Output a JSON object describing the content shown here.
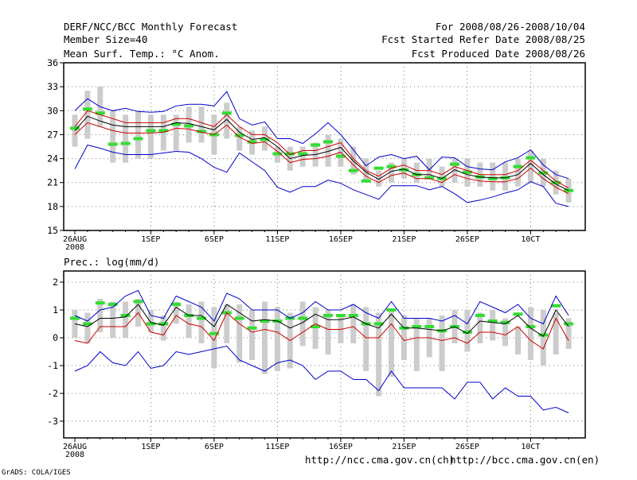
{
  "header": {
    "title_left": "DERF/NCC/BCC Monthly Forecast",
    "member_size": "Member Size=40",
    "variable": "Mean Surf. Temp.: °C Anom.",
    "period": "For 2008/08/26-2008/10/04",
    "fcst_started": "Fcst Started Refer Date 2008/08/25",
    "fcst_produced": "Fcst Produced Date 2008/08/26"
  },
  "footer": {
    "credit": "GrADS: COLA/IGES",
    "url_ncc": "http://ncc.cma.gov.cn(ch)",
    "url_bcc": "http://bcc.cma.gov.cn(en)"
  },
  "colors": {
    "mean": "#000000",
    "envelope": "#0000cc",
    "spread": "#cc0000",
    "box": "#cccccc",
    "median": "#33dd33",
    "grid": "#777777"
  },
  "chart_data": [
    {
      "type": "line",
      "title": "Mean Surf. Temp.: °C Anom.",
      "xlabel": "",
      "ylabel": "",
      "ylim": [
        15,
        36
      ],
      "yticks": [
        15,
        18,
        21,
        24,
        27,
        30,
        33,
        36
      ],
      "grid": true,
      "xtick_labels": [
        {
          "day": 1,
          "label": "26AUG",
          "sublabel": "2008"
        },
        {
          "day": 7,
          "label": "1SEP"
        },
        {
          "day": 12,
          "label": "6SEP"
        },
        {
          "day": 17,
          "label": "11SEP"
        },
        {
          "day": 22,
          "label": "16SEP"
        },
        {
          "day": 27,
          "label": "21SEP"
        },
        {
          "day": 32,
          "label": "26SEP"
        },
        {
          "day": 37,
          "label": "1OCT",
          "display": "10CT"
        }
      ],
      "days": [
        1,
        2,
        3,
        4,
        5,
        6,
        7,
        8,
        9,
        10,
        11,
        12,
        13,
        14,
        15,
        16,
        17,
        18,
        19,
        20,
        21,
        22,
        23,
        24,
        25,
        26,
        27,
        28,
        29,
        30,
        31,
        32,
        33,
        34,
        35,
        36,
        37,
        38,
        39,
        40
      ],
      "boxes": {
        "low": [
          25.5,
          26.5,
          28,
          23.5,
          23.5,
          24,
          24,
          25,
          25,
          26,
          26,
          24.5,
          26.5,
          25,
          24.5,
          25,
          23.5,
          22.5,
          23,
          23,
          23,
          23,
          22,
          21,
          20.5,
          21,
          21.5,
          21,
          21.5,
          20.5,
          21,
          20.5,
          20.5,
          20,
          20,
          20.5,
          21,
          20.5,
          19.5,
          18.5
        ],
        "high": [
          29.5,
          32.5,
          33,
          30,
          29.5,
          30,
          29.5,
          29.5,
          29.5,
          30.5,
          30.5,
          29.5,
          31,
          28,
          27.5,
          28,
          25.5,
          25.5,
          25.5,
          26,
          27,
          26.5,
          25.5,
          24,
          22.5,
          23.5,
          24,
          23.5,
          24,
          23,
          24,
          24,
          23.5,
          23.5,
          23.5,
          24,
          25,
          24,
          22.5,
          21.5
        ],
        "median": [
          27.8,
          30.2,
          29.7,
          25.8,
          25.9,
          26.5,
          27.5,
          27.5,
          28.3,
          28.1,
          27.4,
          27.0,
          29.7,
          26.9,
          26.1,
          26.4,
          24.6,
          24.6,
          24.6,
          25.7,
          26.1,
          24.3,
          22.5,
          21.2,
          22.8,
          23.0,
          22.6,
          22.0,
          21.6,
          21.5,
          23.3,
          22.3,
          21.7,
          21.5,
          21.6,
          23.0,
          24.1,
          22.2,
          21.0,
          20.0
        ]
      },
      "series": [
        {
          "name": "ensemble mean",
          "color": "#000000",
          "values": [
            27.5,
            29.3,
            28.7,
            28.2,
            28.0,
            28.0,
            28.0,
            28.0,
            28.5,
            28.4,
            28.0,
            27.6,
            28.9,
            27.3,
            26.4,
            26.6,
            25.5,
            24.0,
            24.4,
            24.5,
            24.9,
            25.4,
            23.7,
            22.3,
            21.4,
            22.4,
            22.7,
            22.0,
            22.0,
            21.5,
            22.6,
            22.0,
            21.7,
            21.6,
            21.6,
            22.0,
            23.4,
            22.0,
            20.8,
            20.0
          ]
        },
        {
          "name": "mean + spread",
          "color": "#cc0000",
          "values": [
            28.0,
            30.0,
            29.5,
            29.0,
            28.5,
            28.5,
            28.5,
            28.5,
            29.0,
            29.0,
            28.5,
            28.0,
            29.5,
            28.0,
            27.0,
            27.0,
            26.0,
            24.5,
            25.0,
            25.0,
            25.5,
            26.0,
            24.0,
            22.5,
            21.8,
            22.8,
            23.2,
            22.5,
            22.5,
            22.0,
            23.0,
            22.5,
            22.0,
            22.0,
            22.0,
            22.5,
            23.8,
            22.5,
            21.2,
            20.3
          ]
        },
        {
          "name": "mean - spread",
          "color": "#cc0000",
          "values": [
            27.0,
            28.5,
            28.0,
            27.5,
            27.2,
            27.2,
            27.2,
            27.3,
            27.8,
            27.7,
            27.3,
            27.0,
            28.2,
            26.7,
            25.9,
            26.1,
            24.9,
            23.5,
            23.9,
            24.0,
            24.3,
            24.8,
            23.2,
            21.8,
            21.0,
            21.9,
            22.2,
            21.5,
            21.5,
            21.0,
            22.0,
            21.5,
            21.2,
            21.1,
            21.1,
            21.5,
            22.8,
            21.5,
            20.4,
            19.6
          ]
        },
        {
          "name": "ensemble max",
          "color": "#0000cc",
          "values": [
            30.0,
            31.5,
            30.5,
            30.0,
            30.3,
            29.9,
            29.8,
            29.9,
            30.6,
            30.8,
            30.8,
            30.6,
            32.4,
            29.0,
            28.2,
            28.6,
            26.5,
            26.5,
            25.9,
            27.1,
            28.5,
            27.0,
            25.1,
            23.1,
            24.2,
            24.5,
            24.0,
            24.3,
            22.6,
            24.2,
            24.1,
            23.0,
            22.7,
            22.6,
            23.6,
            24.1,
            25.1,
            23.2,
            22.0,
            21.5
          ]
        },
        {
          "name": "ensemble min",
          "color": "#0000cc",
          "values": [
            22.7,
            25.7,
            25.3,
            24.8,
            24.5,
            24.5,
            24.5,
            24.7,
            24.9,
            24.8,
            24.0,
            22.9,
            22.3,
            24.7,
            23.6,
            22.5,
            20.4,
            19.8,
            20.5,
            20.5,
            21.3,
            20.9,
            20.1,
            19.5,
            18.9,
            20.6,
            20.6,
            20.6,
            20.1,
            20.5,
            19.6,
            18.5,
            18.8,
            19.2,
            19.7,
            20.1,
            21.1,
            20.5,
            18.4,
            18.0
          ]
        }
      ]
    },
    {
      "type": "line",
      "title": "Prec.: log(mm/d)",
      "xlabel": "",
      "ylabel": "",
      "ylim": [
        -3.6,
        2.4
      ],
      "yticks": [
        -3,
        -2,
        -1,
        0,
        1,
        2
      ],
      "grid": true,
      "xtick_labels": [
        {
          "day": 1,
          "label": "26AUG",
          "sublabel": "2008"
        },
        {
          "day": 7,
          "label": "1SEP"
        },
        {
          "day": 12,
          "label": "6SEP"
        },
        {
          "day": 17,
          "label": "11SEP"
        },
        {
          "day": 22,
          "label": "16SEP"
        },
        {
          "day": 27,
          "label": "21SEP"
        },
        {
          "day": 32,
          "label": "26SEP"
        },
        {
          "day": 37,
          "label": "1OCT",
          "display": "10CT"
        }
      ],
      "days": [
        1,
        2,
        3,
        4,
        5,
        6,
        7,
        8,
        9,
        10,
        11,
        12,
        13,
        14,
        15,
        16,
        17,
        18,
        19,
        20,
        21,
        22,
        23,
        24,
        25,
        26,
        27,
        28,
        29,
        30,
        31,
        32,
        33,
        34,
        35,
        36,
        37,
        38,
        39,
        40
      ],
      "boxes": {
        "low": [
          0.0,
          -0.2,
          0.2,
          0.0,
          0.0,
          0.4,
          0.2,
          -0.1,
          0.5,
          0.0,
          -0.2,
          -1.1,
          -0.2,
          -0.9,
          -0.8,
          -1.3,
          -1.2,
          -1.1,
          -0.3,
          -0.4,
          -0.6,
          -0.2,
          -0.2,
          -1.2,
          -2.1,
          -1.4,
          -0.8,
          -1.2,
          -0.7,
          -1.2,
          -0.2,
          -0.5,
          -0.2,
          -0.1,
          -0.3,
          -0.6,
          -0.8,
          -1.0,
          -0.6,
          -0.4
        ],
        "high": [
          1.0,
          0.9,
          1.4,
          1.3,
          1.3,
          1.4,
          1.0,
          0.8,
          1.3,
          1.2,
          1.3,
          1.1,
          1.2,
          1.2,
          1.0,
          1.3,
          1.1,
          0.9,
          1.3,
          1.1,
          1.0,
          0.8,
          1.2,
          1.1,
          0.9,
          1.0,
          0.8,
          0.7,
          0.7,
          0.8,
          1.0,
          1.0,
          0.9,
          1.0,
          0.7,
          0.4,
          1.1,
          1.0,
          0.9,
          0.7
        ],
        "median": [
          0.7,
          0.5,
          1.25,
          1.2,
          0.8,
          1.3,
          0.5,
          0.5,
          1.2,
          0.8,
          0.7,
          0.15,
          0.9,
          0.7,
          0.35,
          0.6,
          0.6,
          0.7,
          0.7,
          0.4,
          0.8,
          0.8,
          0.8,
          0.5,
          0.5,
          1.0,
          0.35,
          0.4,
          0.4,
          0.25,
          0.4,
          0.2,
          0.8,
          0.6,
          0.55,
          0.85,
          0.4,
          0.1,
          1.15,
          0.5
        ]
      },
      "series": [
        {
          "name": "ensemble mean",
          "color": "#000000",
          "values": [
            0.5,
            0.4,
            0.7,
            0.7,
            0.75,
            1.2,
            0.55,
            0.45,
            1.1,
            0.8,
            0.8,
            0.4,
            1.2,
            0.9,
            0.6,
            0.65,
            0.6,
            0.35,
            0.55,
            0.85,
            0.65,
            0.65,
            0.75,
            0.5,
            0.35,
            0.85,
            0.35,
            0.35,
            0.3,
            0.25,
            0.4,
            0.15,
            0.6,
            0.55,
            0.5,
            0.8,
            0.35,
            0.05,
            1.0,
            0.4
          ]
        },
        {
          "name": "mean + spread",
          "color": "#0000cc",
          "values": [
            0.8,
            0.6,
            1.0,
            1.1,
            1.5,
            1.7,
            0.8,
            0.7,
            1.5,
            1.3,
            1.1,
            0.6,
            1.6,
            1.4,
            1.0,
            1.0,
            1.0,
            0.7,
            0.9,
            1.3,
            1.0,
            1.0,
            1.2,
            0.9,
            0.7,
            1.3,
            0.7,
            0.7,
            0.7,
            0.6,
            0.8,
            0.5,
            1.3,
            1.1,
            0.9,
            1.2,
            0.7,
            0.5,
            1.5,
            0.8
          ]
        },
        {
          "name": "mean - spread",
          "color": "#cc0000",
          "values": [
            -0.1,
            -0.2,
            0.4,
            0.4,
            0.4,
            0.9,
            0.2,
            0.1,
            0.8,
            0.5,
            0.4,
            -0.1,
            0.9,
            0.5,
            0.2,
            0.3,
            0.2,
            -0.1,
            0.2,
            0.5,
            0.3,
            0.3,
            0.4,
            0.0,
            0.0,
            0.5,
            -0.1,
            0.0,
            0.0,
            -0.1,
            0.0,
            -0.2,
            0.2,
            0.2,
            0.1,
            0.4,
            -0.1,
            -0.4,
            0.7,
            -0.1
          ]
        },
        {
          "name": "ensemble min",
          "color": "#0000cc",
          "values": [
            -1.2,
            -1.0,
            -0.5,
            -0.9,
            -1.0,
            -0.5,
            -1.1,
            -1.0,
            -0.5,
            -0.6,
            -0.5,
            -0.4,
            -0.3,
            -0.8,
            -1.0,
            -1.2,
            -0.9,
            -0.8,
            -1.0,
            -1.5,
            -1.2,
            -1.2,
            -1.5,
            -1.5,
            -1.9,
            -1.2,
            -1.8,
            -1.8,
            -1.8,
            -1.8,
            -2.2,
            -1.6,
            -1.6,
            -2.2,
            -1.8,
            -2.1,
            -2.1,
            -2.6,
            -2.5,
            -2.7
          ]
        }
      ]
    }
  ]
}
